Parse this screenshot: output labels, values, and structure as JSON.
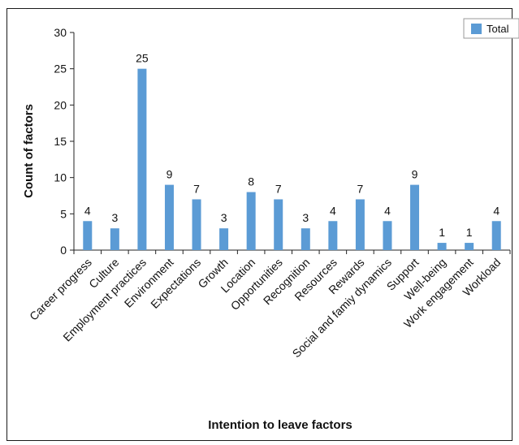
{
  "chart_data": {
    "type": "bar",
    "title": "",
    "xlabel": "Intention to leave factors",
    "ylabel": "Count of factors",
    "ylim": [
      0,
      30
    ],
    "yticks": [
      0,
      5,
      10,
      15,
      20,
      25,
      30
    ],
    "grid": false,
    "legend_position": "top-right",
    "bar_color": "#5B9BD5",
    "categories": [
      "Career progress",
      "Culture",
      "Employment practices",
      "Environment",
      "Expectations",
      "Growth",
      "Location",
      "Opportunities",
      "Recognition",
      "Resources",
      "Rewards",
      "Social and famiy dynamics",
      "Support",
      "Well-being",
      "Work engagement",
      "Workload"
    ],
    "series": [
      {
        "name": "Total",
        "values": [
          4,
          3,
          25,
          9,
          7,
          3,
          8,
          7,
          3,
          4,
          7,
          4,
          9,
          1,
          1,
          4
        ]
      }
    ]
  }
}
